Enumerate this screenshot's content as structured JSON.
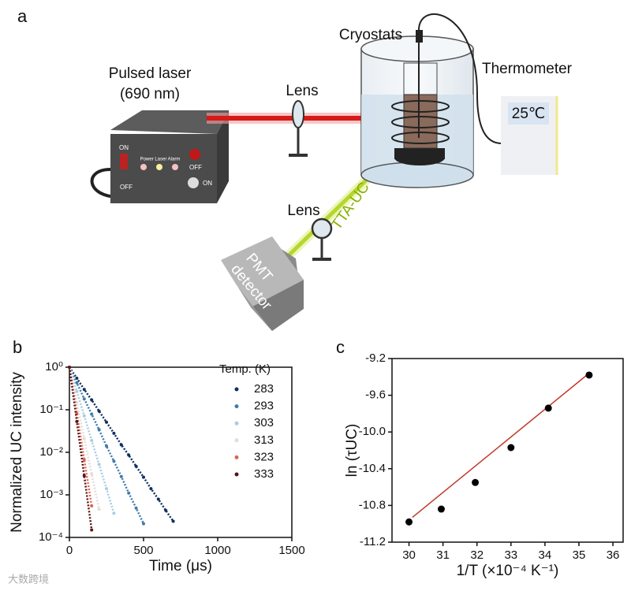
{
  "figure": {
    "panel_a": "a",
    "panel_b": "b",
    "panel_c": "c",
    "watermark": "大数跨境"
  },
  "diagram": {
    "laser_title": "Pulsed laser",
    "laser_wavelength": "(690 nm)",
    "lens_1": "Lens",
    "lens_2": "Lens",
    "cryostats": "Cryostats",
    "thermometer": "Thermometer",
    "temperature": "25℃",
    "beam": "TTA-UC",
    "detector_1": "PMT",
    "detector_2": "detector",
    "panel": {
      "on_1": "ON",
      "off_1": "OFF",
      "indicators": "Power Laser Alarm",
      "off_2": "OFF",
      "on_2": "ON"
    }
  },
  "chart_data": [
    {
      "type": "line",
      "xlabel": "Time (μs)",
      "ylabel": "Normalized UC intensity",
      "log_y": true,
      "legend_title": "Temp. (K)",
      "x": [
        0,
        50,
        100,
        150,
        200,
        250,
        300,
        350,
        400,
        450,
        500,
        550,
        600,
        650,
        700
      ],
      "series": [
        {
          "name": "283",
          "color": "#0f2f5f",
          "values": [
            1,
            0.55,
            0.3,
            0.17,
            0.093,
            0.051,
            0.028,
            0.015,
            0.0086,
            0.0047,
            0.0026,
            0.0014,
            0.00079,
            0.00043,
            0.00024
          ]
        },
        {
          "name": "293",
          "color": "#3f7bab",
          "values": [
            1,
            0.43,
            0.18,
            0.079,
            0.034,
            0.014,
            0.0062,
            0.0027,
            0.0011,
            0.00049,
            0.00021,
            null,
            null,
            null,
            null
          ]
        },
        {
          "name": "303",
          "color": "#a7cde2",
          "values": [
            1,
            0.27,
            0.072,
            0.019,
            0.0052,
            0.0014,
            0.00037,
            null,
            null,
            null,
            null,
            null,
            null,
            null,
            null
          ]
        },
        {
          "name": "313",
          "color": "#e6dcd6",
          "values": [
            1,
            0.15,
            0.021,
            0.0031,
            0.00046,
            null,
            null,
            null,
            null,
            null,
            null,
            null,
            null,
            null,
            null
          ]
        },
        {
          "name": "323",
          "color": "#de6452",
          "values": [
            1,
            0.082,
            0.0067,
            0.00055,
            null,
            null,
            null,
            null,
            null,
            null,
            null,
            null,
            null,
            null,
            null
          ]
        },
        {
          "name": "333",
          "color": "#5c1212",
          "values": [
            1,
            0.053,
            0.0028,
            0.00015,
            null,
            null,
            null,
            null,
            null,
            null,
            null,
            null,
            null,
            null,
            null
          ]
        }
      ],
      "xlim": [
        0,
        1500
      ],
      "xticks": [
        0,
        500,
        1000,
        1500
      ],
      "ylim": [
        0.0001,
        1
      ],
      "yticks": [
        {
          "value": 1,
          "label": "10⁰"
        },
        {
          "value": 0.1,
          "label": "10⁻¹"
        },
        {
          "value": 0.01,
          "label": "10⁻²"
        },
        {
          "value": 0.001,
          "label": "10⁻³"
        },
        {
          "value": 0.0001,
          "label": "10⁻⁴"
        }
      ]
    },
    {
      "type": "scatter",
      "xlabel": "1/T (×10⁻⁴ K⁻¹)",
      "ylabel": "ln (τUC)",
      "x": [
        30.0,
        30.95,
        31.95,
        33.0,
        34.1,
        35.3
      ],
      "series": [
        {
          "color": "#000000",
          "values": [
            -10.98,
            -10.84,
            -10.55,
            -10.17,
            -9.74,
            -9.38
          ]
        }
      ],
      "fit": {
        "color": "#c0392b",
        "x": [
          30.1,
          35.3
        ],
        "values": [
          -10.93,
          -9.36
        ]
      },
      "xlim": [
        29.5,
        36.3
      ],
      "xticks": [
        30,
        31,
        32,
        33,
        34,
        35,
        36
      ],
      "ylim": [
        -11.2,
        -9.2
      ],
      "yticks": [
        -11.2,
        -10.8,
        -10.4,
        {
          "value": -10,
          "label": "-10.0"
        },
        -9.6,
        -9.2
      ]
    }
  ]
}
